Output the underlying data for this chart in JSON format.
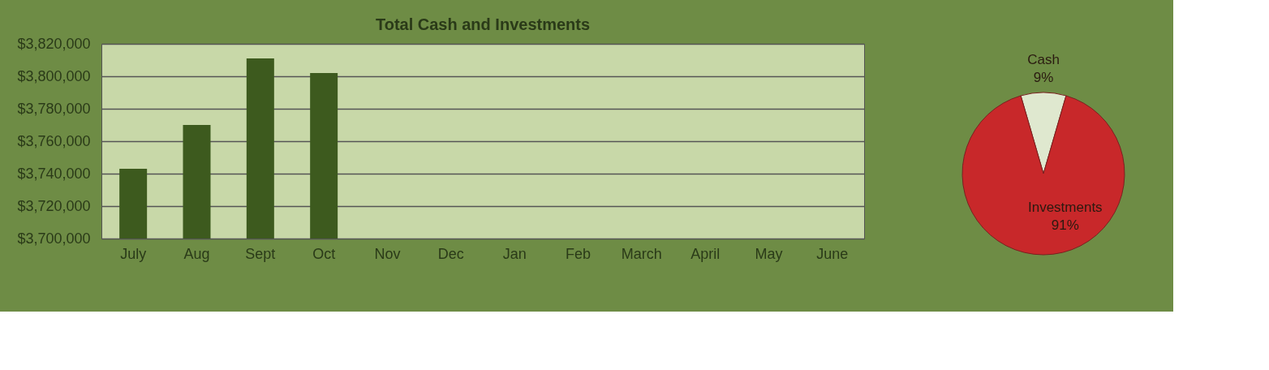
{
  "chart_data": [
    {
      "type": "bar",
      "title": "Total Cash and Investments",
      "categories": [
        "July",
        "Aug",
        "Sept",
        "Oct",
        "Nov",
        "Dec",
        "Jan",
        "Feb",
        "March",
        "April",
        "May",
        "June"
      ],
      "values": [
        3743000,
        3770000,
        3811000,
        3802000,
        null,
        null,
        null,
        null,
        null,
        null,
        null,
        null
      ],
      "color": "#3d5a1e",
      "ylim": [
        3700000,
        3820000
      ],
      "yticks": [
        {
          "value": 3700000,
          "label": "$3,700,000"
        },
        {
          "value": 3720000,
          "label": "$3,720,000"
        },
        {
          "value": 3740000,
          "label": "$3,740,000"
        },
        {
          "value": 3760000,
          "label": "$3,760,000"
        },
        {
          "value": 3780000,
          "label": "$3,780,000"
        },
        {
          "value": 3800000,
          "label": "$3,800,000"
        },
        {
          "value": 3820000,
          "label": "$3,820,000"
        }
      ],
      "grid": "y"
    },
    {
      "type": "pie",
      "categories": [
        "Cash",
        "Investments"
      ],
      "values": [
        9,
        91
      ],
      "colors": [
        "#dfe8cf",
        "#c8282a"
      ],
      "value_labels": [
        "9%",
        "91%"
      ]
    }
  ]
}
